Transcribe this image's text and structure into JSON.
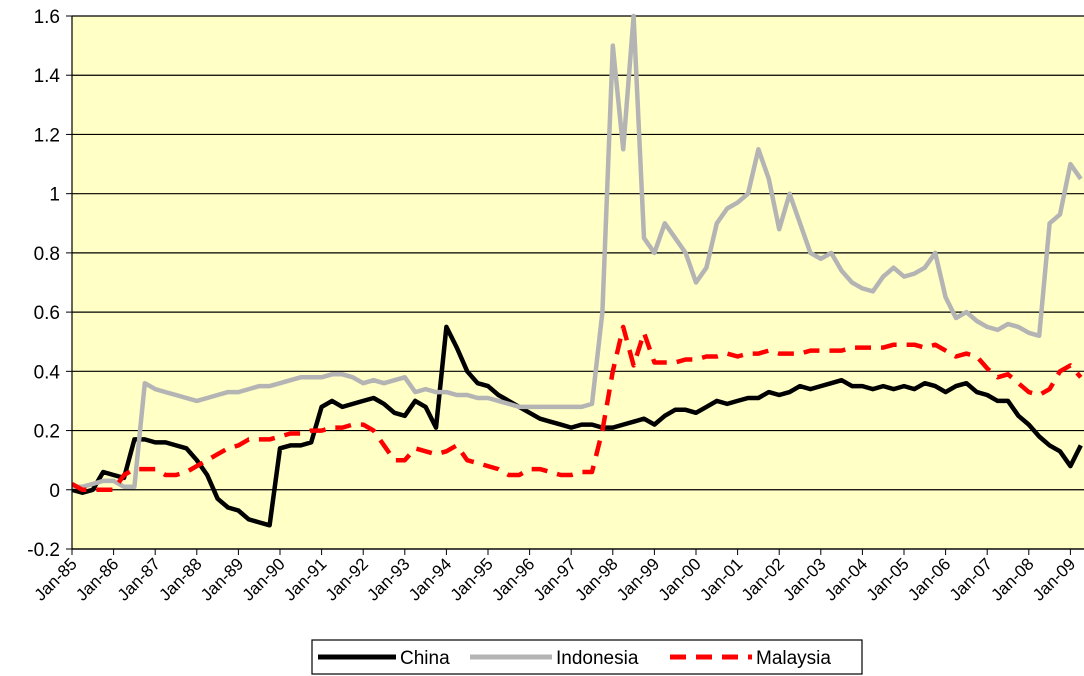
{
  "chart_data": {
    "type": "line",
    "categories": [
      "Jan-85",
      null,
      null,
      null,
      "Jan-86",
      null,
      null,
      null,
      "Jan-87",
      null,
      null,
      null,
      "Jan-88",
      null,
      null,
      null,
      "Jan-89",
      null,
      null,
      null,
      "Jan-90",
      null,
      null,
      null,
      "Jan-91",
      null,
      null,
      null,
      "Jan-92",
      null,
      null,
      null,
      "Jan-93",
      null,
      null,
      null,
      "Jan-94",
      null,
      null,
      null,
      "Jan-95",
      null,
      null,
      null,
      "Jan-96",
      null,
      null,
      null,
      "Jan-97",
      null,
      null,
      null,
      "Jan-98",
      null,
      null,
      null,
      "Jan-99",
      null,
      null,
      null,
      "Jan-00",
      null,
      null,
      null,
      "Jan-01",
      null,
      null,
      null,
      "Jan-02",
      null,
      null,
      null,
      "Jan-03",
      null,
      null,
      null,
      "Jan-04",
      null,
      null,
      null,
      "Jan-05",
      null,
      null,
      null,
      "Jan-06",
      null,
      null,
      null,
      "Jan-07",
      null,
      null,
      null,
      "Jan-08",
      null,
      null,
      null,
      "Jan-09",
      null
    ],
    "series": [
      {
        "name": "China",
        "color": "#000000",
        "style": "solid",
        "values": [
          0,
          -0.01,
          0.0,
          0.06,
          0.05,
          0.04,
          0.17,
          0.17,
          0.16,
          0.16,
          0.15,
          0.14,
          0.1,
          0.05,
          -0.03,
          -0.06,
          -0.07,
          -0.1,
          -0.11,
          -0.12,
          0.14,
          0.15,
          0.15,
          0.16,
          0.28,
          0.3,
          0.28,
          0.29,
          0.3,
          0.31,
          0.29,
          0.26,
          0.25,
          0.3,
          0.28,
          0.21,
          0.55,
          0.48,
          0.4,
          0.36,
          0.35,
          0.32,
          0.3,
          0.28,
          0.26,
          0.24,
          0.23,
          0.22,
          0.21,
          0.22,
          0.22,
          0.21,
          0.21,
          0.22,
          0.23,
          0.24,
          0.22,
          0.25,
          0.27,
          0.27,
          0.26,
          0.28,
          0.3,
          0.29,
          0.3,
          0.31,
          0.31,
          0.33,
          0.32,
          0.33,
          0.35,
          0.34,
          0.35,
          0.36,
          0.37,
          0.35,
          0.35,
          0.34,
          0.35,
          0.34,
          0.35,
          0.34,
          0.36,
          0.35,
          0.33,
          0.35,
          0.36,
          0.33,
          0.32,
          0.3,
          0.3,
          0.25,
          0.22,
          0.18,
          0.15,
          0.13,
          0.08,
          0.15
        ]
      },
      {
        "name": "Indonesia",
        "color": "#b4b4b4",
        "style": "solid",
        "values": [
          0.01,
          0.01,
          0.02,
          0.03,
          0.03,
          0.01,
          0.01,
          0.36,
          0.34,
          0.33,
          0.32,
          0.31,
          0.3,
          0.31,
          0.32,
          0.33,
          0.33,
          0.34,
          0.35,
          0.35,
          0.36,
          0.37,
          0.38,
          0.38,
          0.38,
          0.39,
          0.39,
          0.38,
          0.36,
          0.37,
          0.36,
          0.37,
          0.38,
          0.33,
          0.34,
          0.33,
          0.33,
          0.32,
          0.32,
          0.31,
          0.31,
          0.3,
          0.29,
          0.28,
          0.28,
          0.28,
          0.28,
          0.28,
          0.28,
          0.28,
          0.29,
          0.6,
          1.5,
          1.15,
          1.6,
          0.85,
          0.8,
          0.9,
          0.85,
          0.8,
          0.7,
          0.75,
          0.9,
          0.95,
          0.97,
          1.0,
          1.15,
          1.05,
          0.88,
          1.0,
          0.9,
          0.8,
          0.78,
          0.8,
          0.74,
          0.7,
          0.68,
          0.67,
          0.72,
          0.75,
          0.72,
          0.73,
          0.75,
          0.8,
          0.65,
          0.58,
          0.6,
          0.57,
          0.55,
          0.54,
          0.56,
          0.55,
          0.53,
          0.52,
          0.9,
          0.93,
          1.1,
          1.05
        ]
      },
      {
        "name": "Malaysia",
        "color": "#ff0000",
        "style": "dashed",
        "values": [
          0.02,
          0.0,
          0.0,
          0.0,
          0.0,
          0.05,
          0.07,
          0.07,
          0.07,
          0.05,
          0.05,
          0.06,
          0.08,
          0.1,
          0.12,
          0.14,
          0.15,
          0.17,
          0.17,
          0.17,
          0.18,
          0.19,
          0.19,
          0.2,
          0.2,
          0.21,
          0.21,
          0.22,
          0.22,
          0.2,
          0.15,
          0.1,
          0.1,
          0.14,
          0.13,
          0.12,
          0.13,
          0.15,
          0.1,
          0.09,
          0.08,
          0.07,
          0.05,
          0.05,
          0.07,
          0.07,
          0.06,
          0.05,
          0.05,
          0.06,
          0.06,
          0.2,
          0.4,
          0.55,
          0.42,
          0.53,
          0.43,
          0.43,
          0.43,
          0.44,
          0.44,
          0.45,
          0.45,
          0.46,
          0.45,
          0.46,
          0.46,
          0.47,
          0.46,
          0.46,
          0.46,
          0.47,
          0.47,
          0.47,
          0.47,
          0.48,
          0.48,
          0.48,
          0.48,
          0.49,
          0.49,
          0.49,
          0.48,
          0.49,
          0.47,
          0.45,
          0.46,
          0.45,
          0.41,
          0.38,
          0.39,
          0.36,
          0.33,
          0.32,
          0.34,
          0.4,
          0.42,
          0.38
        ]
      }
    ],
    "ylim": [
      -0.2,
      1.6
    ],
    "yticks": [
      -0.2,
      0,
      0.2,
      0.4,
      0.6,
      0.8,
      1,
      1.2,
      1.4,
      1.6
    ],
    "grid": true,
    "background": "#ffffc6",
    "legend": "bottom"
  }
}
